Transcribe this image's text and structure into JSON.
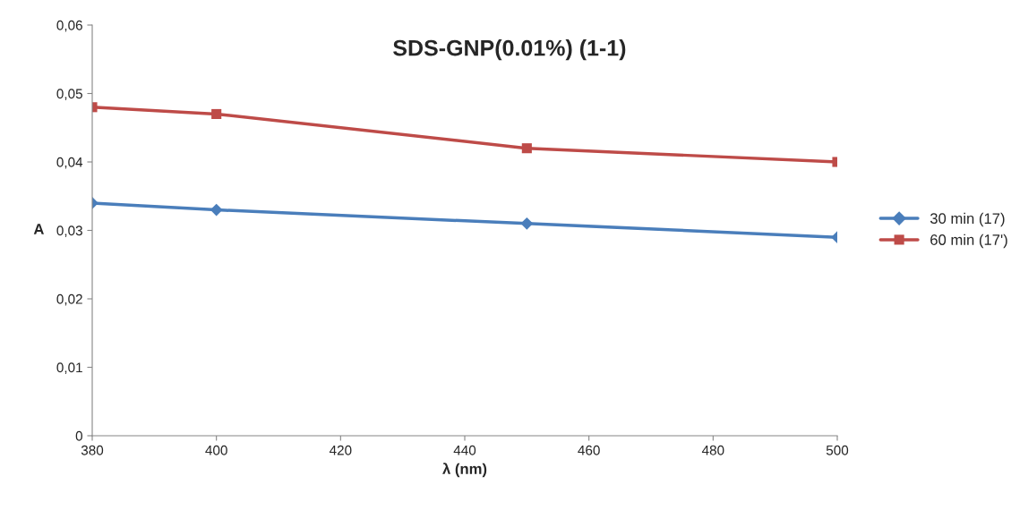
{
  "chart_data": {
    "type": "line",
    "title": "SDS-GNP(0.01%) (1-1)",
    "xlabel": "λ (nm)",
    "ylabel": "A",
    "x": [
      380,
      400,
      450,
      500
    ],
    "series": [
      {
        "name": "30 min (17)",
        "color": "#4a7ebb",
        "values": [
          0.034,
          0.033,
          0.031,
          0.029
        ],
        "marker": "diamond"
      },
      {
        "name": "60 min (17')",
        "color": "#be4b48",
        "values": [
          0.048,
          0.047,
          0.042,
          0.04
        ],
        "marker": "square"
      }
    ],
    "xlim": [
      380,
      500
    ],
    "xticks": [
      380,
      400,
      420,
      440,
      460,
      480,
      500
    ],
    "ylim": [
      0,
      0.06
    ],
    "yticks": [
      {
        "value": 0,
        "label": "0"
      },
      {
        "value": 0.01,
        "label": "0,01"
      },
      {
        "value": 0.02,
        "label": "0,02"
      },
      {
        "value": 0.03,
        "label": "0,03"
      },
      {
        "value": 0.04,
        "label": "0,04"
      },
      {
        "value": 0.05,
        "label": "0,05"
      },
      {
        "value": 0.06,
        "label": "0,06"
      }
    ],
    "grid": false,
    "legend": "right"
  }
}
